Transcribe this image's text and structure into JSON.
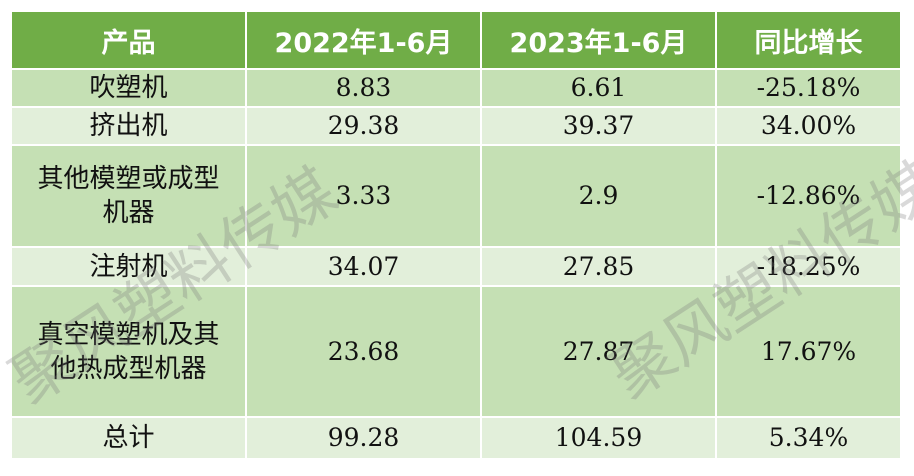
{
  "table": {
    "header": [
      "产品",
      "2022年1-6月",
      "2023年1-6月",
      "同比增长"
    ],
    "rows": [
      [
        "吹塑机",
        "8.83",
        "6.61",
        "-25.18%"
      ],
      [
        "挤出机",
        "29.38",
        "39.37",
        "34.00%"
      ],
      [
        "其他模塑或成型机器",
        "3.33",
        "2.9",
        "-12.86%"
      ],
      [
        "注射机",
        "34.07",
        "27.85",
        "-18.25%"
      ],
      [
        "真空模塑机及其他热成型机器",
        "23.68",
        "27.87",
        "17.67%"
      ],
      [
        "总计",
        "99.28",
        "104.59",
        "5.34%"
      ]
    ]
  },
  "watermarks": [
    "聚风塑料传媒",
    "聚风塑料传媒"
  ]
}
